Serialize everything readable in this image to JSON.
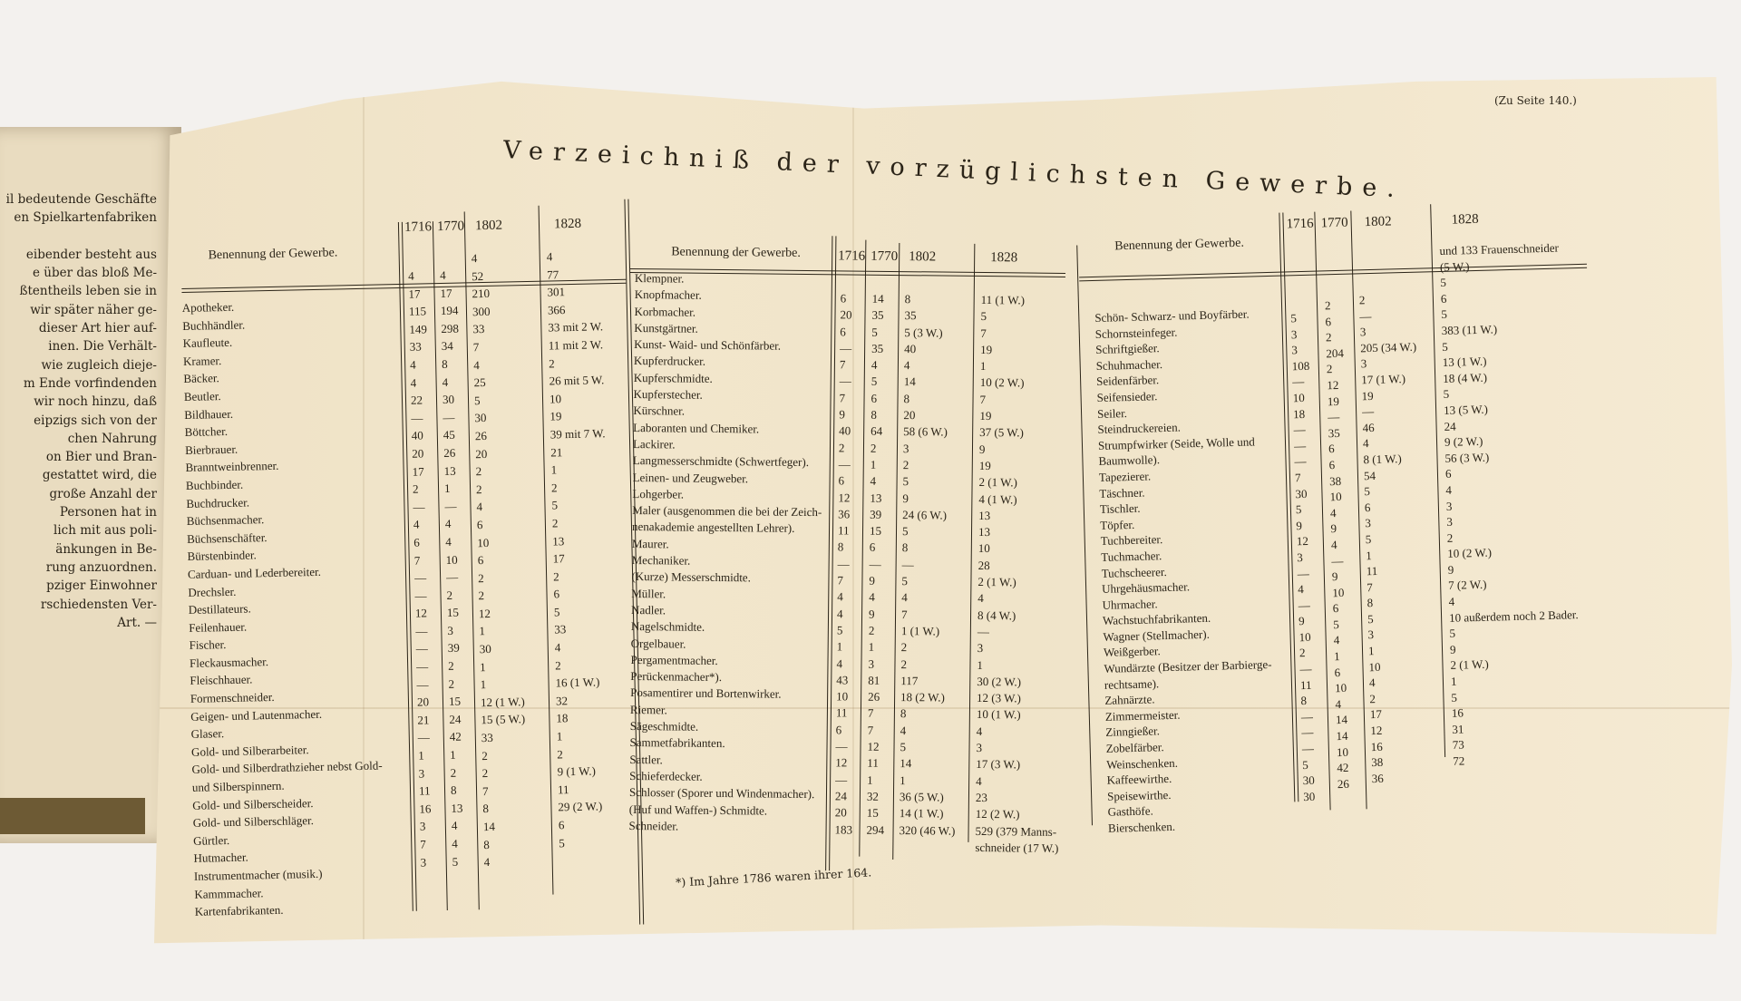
{
  "left_page": {
    "lines": [
      "il bedeutende Geschäfte",
      "en Spielkartenfabriken",
      "",
      "eibender besteht aus",
      "e über das bloß Me-",
      "ßtentheils leben sie in",
      "wir später näher ge-",
      "dieser Art hier auf-",
      "inen. Die Verhält-",
      "wie zugleich dieje-",
      "m Ende vorfindenden",
      "wir noch hinzu, daß",
      "eipzigs sich von der",
      "chen Nahrung",
      "on Bier und Bran-",
      "gestattet wird, die",
      "große Anzahl der",
      "Personen hat in",
      "lich mit aus poli-",
      "änkungen in Be-",
      "rung anzuordnen.",
      "pziger Einwohner",
      "rschiedensten Ver-",
      "Art. —"
    ]
  },
  "foldout": {
    "page_ref": "(Zu Seite 140.)",
    "title": "Verzeichniß der vorzüglichsten Gewerbe.",
    "footnote": "*) Im Jahre 1786 waren ihrer 164.",
    "tables": [
      {
        "header_name": "Benennung der Gewerbe.",
        "years": [
          "1716",
          "1770",
          "1802",
          "1828"
        ],
        "names": [
          "Apotheker.",
          "Buchhändler.",
          "Kaufleute.",
          "Kramer.",
          "Bäcker.",
          "Beutler.",
          "Bildhauer.",
          "Böttcher.",
          "Bierbrauer.",
          "Branntweinbrenner.",
          "Buchbinder.",
          "Buchdrucker.",
          "Büchsenmacher.",
          "Büchsenschäfter.",
          "Bürstenbinder.",
          "Carduan- und Lederbereiter.",
          "Drechsler.",
          "Destillateurs.",
          "Feilenhauer.",
          "Fischer.",
          "Fleckausmacher.",
          "Fleischhauer.",
          "Formenschneider.",
          "Geigen- und Lautenmacher.",
          "Glaser.",
          "Gold- und Silberarbeiter.",
          "Gold- und Silberdrathzieher nebst Gold-",
          "und Silberspinnern.",
          "Gold- und Silberscheider.",
          "Gold- und Silberschläger.",
          "Gürtler.",
          "Hutmacher.",
          "Instrumentmacher (musik.)",
          "Kammmacher.",
          "Kartenfabrikanten."
        ],
        "columns": [
          [
            "4",
            "17",
            "115",
            "149",
            "33",
            "4",
            "4",
            "22",
            "—",
            "40",
            "20",
            "17",
            "2",
            "—",
            "4",
            "6",
            "7",
            "—",
            "—",
            "12",
            "—",
            "—",
            "—",
            "—",
            "20",
            "21",
            "—",
            "1",
            "3",
            "11",
            "16",
            "3",
            "7",
            "3"
          ],
          [
            "4",
            "17",
            "194",
            "298",
            "34",
            "8",
            "4",
            "30",
            "—",
            "45",
            "26",
            "13",
            "1",
            "—",
            "4",
            "4",
            "10",
            "—",
            "2",
            "15",
            "3",
            "39",
            "2",
            "2",
            "15",
            "24",
            "42",
            "1",
            "2",
            "8",
            "13",
            "4",
            "4",
            "5"
          ],
          [
            "4",
            "52",
            "210",
            "300",
            "33",
            "7",
            "4",
            "25",
            "5",
            "30",
            "26",
            "20",
            "2",
            "2",
            "4",
            "6",
            "10",
            "6",
            "2",
            "2",
            "12",
            "1",
            "30",
            "1",
            "1",
            "12 (1 W.)",
            "15 (5 W.)",
            "33",
            "2",
            "2",
            "7",
            "8",
            "14",
            "8",
            "4"
          ],
          [
            "4",
            "77",
            "301",
            "366",
            "33 mit 2 W.",
            "11 mit 2 W.",
            "2",
            "26 mit 5 W.",
            "10",
            "19",
            "39 mit 7 W.",
            "21",
            "1",
            "2",
            "5",
            "2",
            "13",
            "17",
            "2",
            "6",
            "5",
            "33",
            "4",
            "2",
            "16 (1 W.)",
            "32",
            "18",
            "1",
            "2",
            "9 (1 W.)",
            "11",
            "29 (2 W.)",
            "6",
            "5"
          ]
        ]
      },
      {
        "header_name": "Benennung der Gewerbe.",
        "years": [
          "1716",
          "1770",
          "1802",
          "1828"
        ],
        "names": [
          "Klempner.",
          "Knopfmacher.",
          "Korbmacher.",
          "Kunstgärtner.",
          "Kunst- Waid- und Schönfärber.",
          "Kupferdrucker.",
          "Kupferschmidte.",
          "Kupferstecher.",
          "Kürschner.",
          "Laboranten und Chemiker.",
          "Lackirer.",
          "Langmesserschmidte (Schwertfeger).",
          "Leinen- und Zeugweber.",
          "Lohgerber.",
          "Maler (ausgenommen die bei der Zeich-",
          "nenakademie angestellten Lehrer).",
          "Maurer.",
          "Mechaniker.",
          "(Kurze) Messerschmidte.",
          "Müller.",
          "Nadler.",
          "Nagelschmidte.",
          "Orgelbauer.",
          "Pergamentmacher.",
          "Perückenmacher*).",
          "Posamentirer und Bortenwirker.",
          "Riemer.",
          "Sägeschmidte.",
          "Sammetfabrikanten.",
          "Sattler.",
          "Schieferdecker.",
          "Schlosser (Sporer und Windenmacher).",
          "(Huf und Waffen-) Schmidte.",
          "Schneider."
        ],
        "columns": [
          [
            "6",
            "20",
            "6",
            "—",
            "7",
            "—",
            "7",
            "9",
            "40",
            "2",
            "—",
            "6",
            "12",
            "36",
            "11",
            "8",
            "—",
            "7",
            "4",
            "4",
            "5",
            "1",
            "4",
            "43",
            "10",
            "11",
            "6",
            "—",
            "12",
            "—",
            "24",
            "20",
            "183"
          ],
          [
            "14",
            "35",
            "5",
            "35",
            "4",
            "5",
            "6",
            "8",
            "64",
            "2",
            "1",
            "4",
            "13",
            "39",
            "15",
            "6",
            "—",
            "9",
            "4",
            "9",
            "2",
            "1",
            "3",
            "81",
            "26",
            "7",
            "7",
            "12",
            "11",
            "1",
            "32",
            "15",
            "294"
          ],
          [
            "8",
            "35",
            "5 (3 W.)",
            "40",
            "4",
            "14",
            "8",
            "20",
            "58 (6 W.)",
            "3",
            "2",
            "5",
            "9",
            "24 (6 W.)",
            "5",
            "8",
            "—",
            "5",
            "4",
            "7",
            "1 (1 W.)",
            "2",
            "2",
            "117",
            "18 (2 W.)",
            "8",
            "4",
            "5",
            "14",
            "1",
            "36 (5 W.)",
            "14 (1 W.)",
            "320 (46 W.)"
          ],
          [
            "11 (1 W.)",
            "5",
            "7",
            "19",
            "1",
            "10 (2 W.)",
            "7",
            "19",
            "37 (5 W.)",
            "9",
            "19",
            "2 (1 W.)",
            "4 (1 W.)",
            "13",
            "13",
            "10",
            "28",
            "2 (1 W.)",
            "4",
            "8 (4 W.)",
            "—",
            "3",
            "1",
            "30 (2 W.)",
            "12 (3 W.)",
            "10 (1 W.)",
            "4",
            "3",
            "17 (3 W.)",
            "4",
            "23",
            "12 (2 W.)",
            "529 (379 Manns-",
            "schneider (17 W.)"
          ]
        ]
      },
      {
        "header_name": "Benennung der Gewerbe.",
        "years": [
          "1716",
          "1770",
          "1802",
          "1828"
        ],
        "names": [
          "Schön- Schwarz- und Boyfärber.",
          "Schornsteinfeger.",
          "Schriftgießer.",
          "Schuhmacher.",
          "Seidenfärber.",
          "Seifensieder.",
          "Seiler.",
          "Steindruckereien.",
          "Strumpfwirker (Seide, Wolle und",
          "Baumwolle).",
          "Tapezierer.",
          "Täschner.",
          "Tischler.",
          "Töpfer.",
          "Tuchbereiter.",
          "Tuchmacher.",
          "Tuchscheerer.",
          "Uhrgehäusmacher.",
          "Uhrmacher.",
          "Wachstuchfabrikanten.",
          "Wagner (Stellmacher).",
          "Weißgerber.",
          "Wundärzte (Besitzer der Barbierge-",
          "rechtsame).",
          "Zahnärzte.",
          "Zimmermeister.",
          "Zinngießer.",
          "Zobelfärber.",
          "Weinschenken.",
          "Kaffeewirthe.",
          "Speisewirthe.",
          "Gasthöfe.",
          "Bierschenken."
        ],
        "columns": [
          [
            "5",
            "3",
            "3",
            "108",
            "—",
            "10",
            "18",
            "—",
            "—",
            "—",
            "7",
            "30",
            "5",
            "9",
            "12",
            "3",
            "—",
            "4",
            "—",
            "9",
            "10",
            "2",
            "—",
            "11",
            "8",
            "—",
            "—",
            "—",
            "5",
            "30",
            "30"
          ],
          [
            "2",
            "6",
            "2",
            "204",
            "2",
            "12",
            "19",
            "—",
            "35",
            "6",
            "6",
            "38",
            "10",
            "4",
            "9",
            "4",
            "—",
            "9",
            "10",
            "6",
            "5",
            "4",
            "1",
            "6",
            "10",
            "4",
            "14",
            "14",
            "10",
            "42",
            "26"
          ],
          [
            "2",
            "—",
            "3",
            "205 (34 W.)",
            "3",
            "17 (1 W.)",
            "19",
            "—",
            "46",
            "4",
            "8 (1 W.)",
            "54",
            "5",
            "6",
            "3",
            "5",
            "1",
            "11",
            "7",
            "8",
            "5",
            "3",
            "1",
            "10",
            "4",
            "2",
            "17",
            "12",
            "16",
            "38",
            "36"
          ],
          [
            "und 133 Frauenschneider",
            "(5 W.)",
            "5",
            "6",
            "5",
            "383 (11 W.)",
            "5",
            "13 (1 W.)",
            "18 (4 W.)",
            "5",
            "13 (5 W.)",
            "24",
            "9 (2 W.)",
            "56 (3 W.)",
            "6",
            "4",
            "3",
            "3",
            "2",
            "10 (2 W.)",
            "9",
            "7 (2 W.)",
            "4",
            "10 außerdem noch 2 Bader.",
            "5",
            "9",
            "2 (1 W.)",
            "1",
            "5",
            "16",
            "31",
            "73",
            "72"
          ]
        ]
      }
    ]
  },
  "colors": {
    "paper": "#f0e4c9",
    "ink": "#2b2418",
    "background": "#f3f1ee"
  }
}
